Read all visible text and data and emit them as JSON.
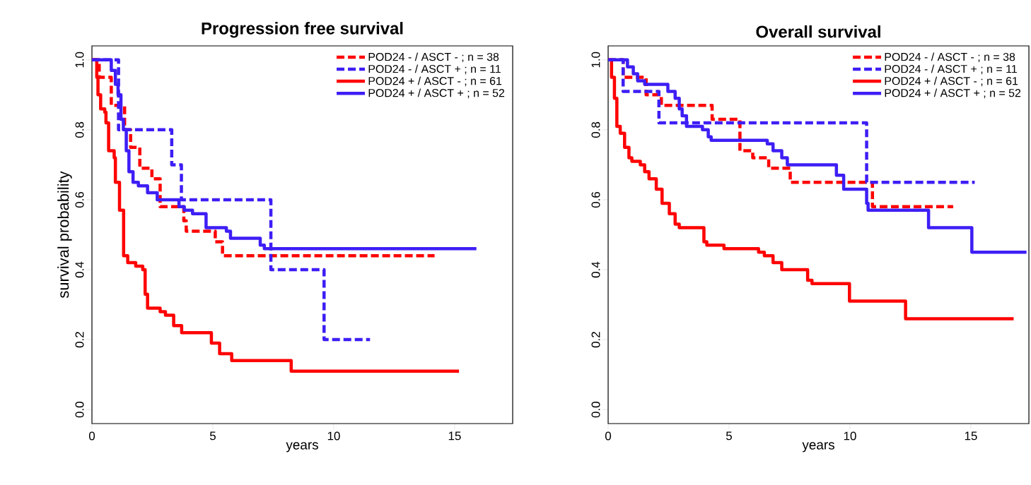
{
  "chart_data": [
    {
      "type": "step",
      "title": "Progression free survival",
      "xlabel": "years",
      "ylabel": "survival probability",
      "xlim": [
        0,
        17.4
      ],
      "ylim": [
        -0.04,
        1.04
      ],
      "xticks": [
        0,
        5,
        10,
        15
      ],
      "yticks": [
        {
          "value": 0,
          "label": "0.0"
        },
        {
          "value": 0.2,
          "label": "0.2"
        },
        {
          "value": 0.4,
          "label": "0.4"
        },
        {
          "value": 0.6,
          "label": "0.6"
        },
        {
          "value": 0.8,
          "label": "0.8"
        },
        {
          "value": 1,
          "label": "1.0"
        }
      ],
      "legend": "top right",
      "grid": false,
      "series": [
        {
          "name": "POD24 - / ASCT - ;   n = 38",
          "color": "#ff0000",
          "line_style": "dashed",
          "x": [
            0,
            0.3,
            0.8,
            1.35,
            1.6,
            1.98,
            2.48,
            2.82,
            3.8,
            3.9,
            5.1,
            5.4,
            14.17
          ],
          "values": [
            1.0,
            0.95,
            0.87,
            0.8,
            0.75,
            0.69,
            0.66,
            0.58,
            0.54,
            0.51,
            0.48,
            0.44,
            0.44
          ]
        },
        {
          "name": "POD24 - / ASCT + ;  n = 11",
          "color": "#3d1ef5",
          "line_style": "dashed",
          "x": [
            0,
            1.1,
            3.3,
            3.7,
            7.4,
            9.6,
            11.5
          ],
          "values": [
            1.0,
            0.8,
            0.7,
            0.6,
            0.4,
            0.2,
            0.2
          ]
        },
        {
          "name": "POD24 + / ASCT - ;  n = 61",
          "color": "#ff0000",
          "line_style": "solid",
          "x": [
            0,
            0.2,
            0.25,
            0.36,
            0.53,
            0.58,
            0.69,
            0.92,
            0.97,
            1.14,
            1.31,
            1.48,
            1.81,
            2.1,
            2.2,
            2.3,
            2.82,
            3.04,
            3.38,
            3.71,
            4.72,
            4.94,
            5.28,
            5.78,
            8.24,
            15.18
          ],
          "values": [
            1.0,
            0.95,
            0.9,
            0.86,
            0.85,
            0.82,
            0.74,
            0.72,
            0.65,
            0.57,
            0.44,
            0.42,
            0.41,
            0.4,
            0.33,
            0.29,
            0.28,
            0.27,
            0.24,
            0.22,
            0.22,
            0.19,
            0.16,
            0.14,
            0.11,
            0.11
          ]
        },
        {
          "name": "POD24 + / ASCT + ; n = 52",
          "color": "#3d1ef5",
          "line_style": "solid",
          "x": [
            0,
            0.8,
            0.97,
            1.08,
            1.2,
            1.3,
            1.42,
            1.53,
            1.7,
            1.92,
            2.3,
            2.7,
            3.04,
            3.6,
            3.82,
            4.16,
            4.72,
            5.56,
            5.73,
            6.96,
            7.13,
            15.9
          ],
          "values": [
            1.0,
            0.97,
            0.93,
            0.9,
            0.83,
            0.8,
            0.74,
            0.68,
            0.65,
            0.64,
            0.62,
            0.6,
            0.6,
            0.58,
            0.57,
            0.56,
            0.52,
            0.51,
            0.49,
            0.47,
            0.46,
            0.46
          ]
        }
      ]
    },
    {
      "type": "step",
      "title": "Overall survival",
      "xlabel": "years",
      "xlim": [
        0,
        17.4
      ],
      "ylim": [
        -0.04,
        1.04
      ],
      "xticks": [
        0,
        5,
        10,
        15
      ],
      "yticks": [
        {
          "value": 0,
          "label": "0.0"
        },
        {
          "value": 0.2,
          "label": "0.2"
        },
        {
          "value": 0.4,
          "label": "0.4"
        },
        {
          "value": 0.6,
          "label": "0.6"
        },
        {
          "value": 0.8,
          "label": "0.8"
        },
        {
          "value": 1,
          "label": "1.0"
        }
      ],
      "legend": "top right",
      "grid": false,
      "series": [
        {
          "name": "POD24 - / ASCT - ;   n = 38",
          "color": "#ff0000",
          "line_style": "dashed",
          "x": [
            0,
            0.62,
            1.57,
            2.2,
            4.3,
            5.45,
            5.98,
            6.64,
            7.53,
            10.93,
            14.27
          ],
          "values": [
            1.0,
            0.95,
            0.9,
            0.87,
            0.83,
            0.74,
            0.72,
            0.69,
            0.65,
            0.58,
            0.58
          ]
        },
        {
          "name": "POD24 - / ASCT + ;  n = 11",
          "color": "#3d1ef5",
          "line_style": "dashed",
          "x": [
            0,
            0.62,
            2.1,
            10.69,
            15.16
          ],
          "values": [
            1.0,
            0.91,
            0.82,
            0.65,
            0.65
          ]
        },
        {
          "name": "POD24 + / ASCT - ;  n = 61",
          "color": "#ff0000",
          "line_style": "solid",
          "x": [
            0,
            0.14,
            0.26,
            0.36,
            0.5,
            0.68,
            0.86,
            0.98,
            1.33,
            1.51,
            1.69,
            1.99,
            2.23,
            2.53,
            2.77,
            2.94,
            3.96,
            4.08,
            4.79,
            6.22,
            6.46,
            6.82,
            7.18,
            8.25,
            8.43,
            9.98,
            12.3,
            16.77
          ],
          "values": [
            1.0,
            0.95,
            0.89,
            0.81,
            0.79,
            0.75,
            0.72,
            0.71,
            0.7,
            0.68,
            0.66,
            0.63,
            0.59,
            0.56,
            0.53,
            0.52,
            0.48,
            0.47,
            0.46,
            0.45,
            0.44,
            0.42,
            0.4,
            0.37,
            0.36,
            0.31,
            0.26,
            0.26
          ]
        },
        {
          "name": "POD24 + / ASCT + ; n = 52",
          "color": "#3d1ef5",
          "line_style": "solid",
          "x": [
            0,
            0.8,
            1.04,
            1.22,
            1.51,
            2.47,
            2.77,
            2.94,
            3.06,
            3.24,
            3.9,
            4.14,
            4.26,
            6.58,
            6.82,
            7.18,
            7.41,
            9.44,
            9.74,
            10.69,
            10.75,
            13.25,
            15.04,
            17.3
          ],
          "values": [
            1.0,
            0.98,
            0.96,
            0.94,
            0.93,
            0.91,
            0.89,
            0.86,
            0.84,
            0.81,
            0.8,
            0.78,
            0.77,
            0.76,
            0.74,
            0.72,
            0.7,
            0.67,
            0.63,
            0.59,
            0.57,
            0.52,
            0.45,
            0.45
          ]
        }
      ]
    }
  ]
}
